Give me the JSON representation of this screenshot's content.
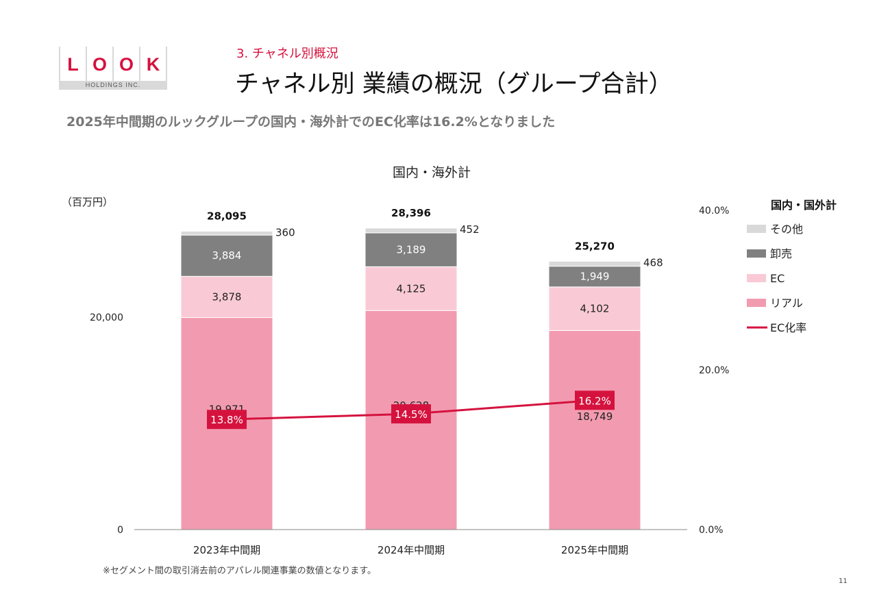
{
  "logo": {
    "letters": [
      "L",
      "O",
      "O",
      "K"
    ],
    "subtext": "HOLDINGS INC."
  },
  "section": "3. チャネル別概況",
  "title": "チャネル別 業績の概況（グループ合計）",
  "subtitle": "2025年中間期のルックグループの国内・海外計でのEC化率は16.2%となりました",
  "footnote": "※セグメント間の取引消去前のアパレル関連事業の数値となります。",
  "page_number": "11",
  "colors": {
    "accent": "#d5123e",
    "real": "#f29bb0",
    "ec": "#f9cad5",
    "wholesale": "#808080",
    "other": "#d9d9d9"
  },
  "chart_data": {
    "type": "bar",
    "stacked": true,
    "title": "国内・海外計",
    "ylabel": "（百万円）",
    "categories": [
      "2023年中間期",
      "2024年中間期",
      "2025年中間期"
    ],
    "series": [
      {
        "name": "リアル",
        "values": [
          19971,
          20628,
          18749
        ]
      },
      {
        "name": "EC",
        "values": [
          3878,
          4125,
          4102
        ]
      },
      {
        "name": "卸売",
        "values": [
          3884,
          3189,
          1949
        ]
      },
      {
        "name": "その他",
        "values": [
          360,
          452,
          468
        ]
      }
    ],
    "totals": [
      28095,
      28396,
      25270
    ],
    "total_labels": [
      "28,095",
      "28,396",
      "25,270"
    ],
    "line": {
      "name": "EC化率",
      "values": [
        13.8,
        14.5,
        16.2
      ],
      "labels": [
        "13.8%",
        "14.5%",
        "16.2%"
      ],
      "axis": "right"
    },
    "ylim": [
      0,
      30000
    ],
    "y_ticks": [
      "0",
      "20,000"
    ],
    "y2lim": [
      0,
      40
    ],
    "y2_ticks": [
      "0.0%",
      "20.0%",
      "40.0%"
    ],
    "legend": {
      "title": "国内・国外計",
      "position": "right"
    }
  }
}
